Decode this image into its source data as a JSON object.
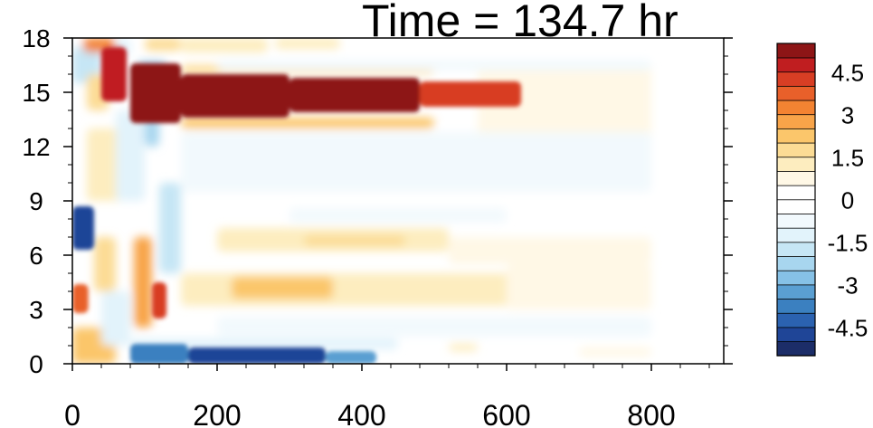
{
  "chart_data": {
    "type": "heatmap",
    "title": "Time = 134.7 hr",
    "xlabel": "",
    "ylabel": "",
    "xlim": [
      0,
      900
    ],
    "ylim": [
      0,
      18
    ],
    "x_ticks": [
      0,
      200,
      400,
      600,
      800
    ],
    "y_ticks": [
      0,
      3,
      6,
      9,
      12,
      15,
      18
    ],
    "colorbar": {
      "levels": [
        -5.5,
        -5,
        -4.5,
        -4,
        -3.5,
        -3,
        -2.5,
        -2,
        -1.5,
        -1,
        -0.5,
        0,
        0.5,
        1,
        1.5,
        2,
        2.5,
        3,
        3.5,
        4,
        4.5,
        5,
        5.5
      ],
      "labels": [
        "4.5",
        "3",
        "1.5",
        "0",
        "-1.5",
        "-3",
        "-4.5"
      ],
      "label_values": [
        4.5,
        3,
        1.5,
        0,
        -1.5,
        -3,
        -4.5
      ],
      "colors": [
        "#1c2d68",
        "#1f4597",
        "#2b62b0",
        "#3b80c0",
        "#5a9fd2",
        "#86c1e6",
        "#a8d6ef",
        "#c6e6f5",
        "#e2f3fb",
        "#f2f9fd",
        "#ffffff",
        "#ffffff",
        "#fff8e6",
        "#fdedbf",
        "#fcdc95",
        "#fbc66b",
        "#f8a449",
        "#f38332",
        "#e8602a",
        "#d83e24",
        "#c01e20",
        "#8d1516"
      ]
    },
    "features": [
      {
        "name": "positive band near 15",
        "x": [
          80,
          760
        ],
        "y": [
          13.5,
          16.5
        ],
        "value": 5.5
      },
      {
        "name": "negative band near 11.5",
        "x": [
          140,
          520
        ],
        "y": [
          10.5,
          12.7
        ],
        "value": -2.5
      },
      {
        "name": "negative band near surface",
        "x": [
          80,
          400
        ],
        "y": [
          0,
          1.2
        ],
        "value": -5
      },
      {
        "name": "positive band near 4",
        "x": [
          150,
          700
        ],
        "y": [
          3,
          5
        ],
        "value": 1.5
      },
      {
        "name": "positive band near 7",
        "x": [
          150,
          500
        ],
        "y": [
          6,
          7.5
        ],
        "value": 1
      },
      {
        "name": "negative patch near 7.5",
        "x": [
          0,
          40
        ],
        "y": [
          6.5,
          8.5
        ],
        "value": -5
      },
      {
        "name": "positive patch near 3.5",
        "x": [
          0,
          30
        ],
        "y": [
          3,
          4.5
        ],
        "value": 3.5
      }
    ]
  }
}
